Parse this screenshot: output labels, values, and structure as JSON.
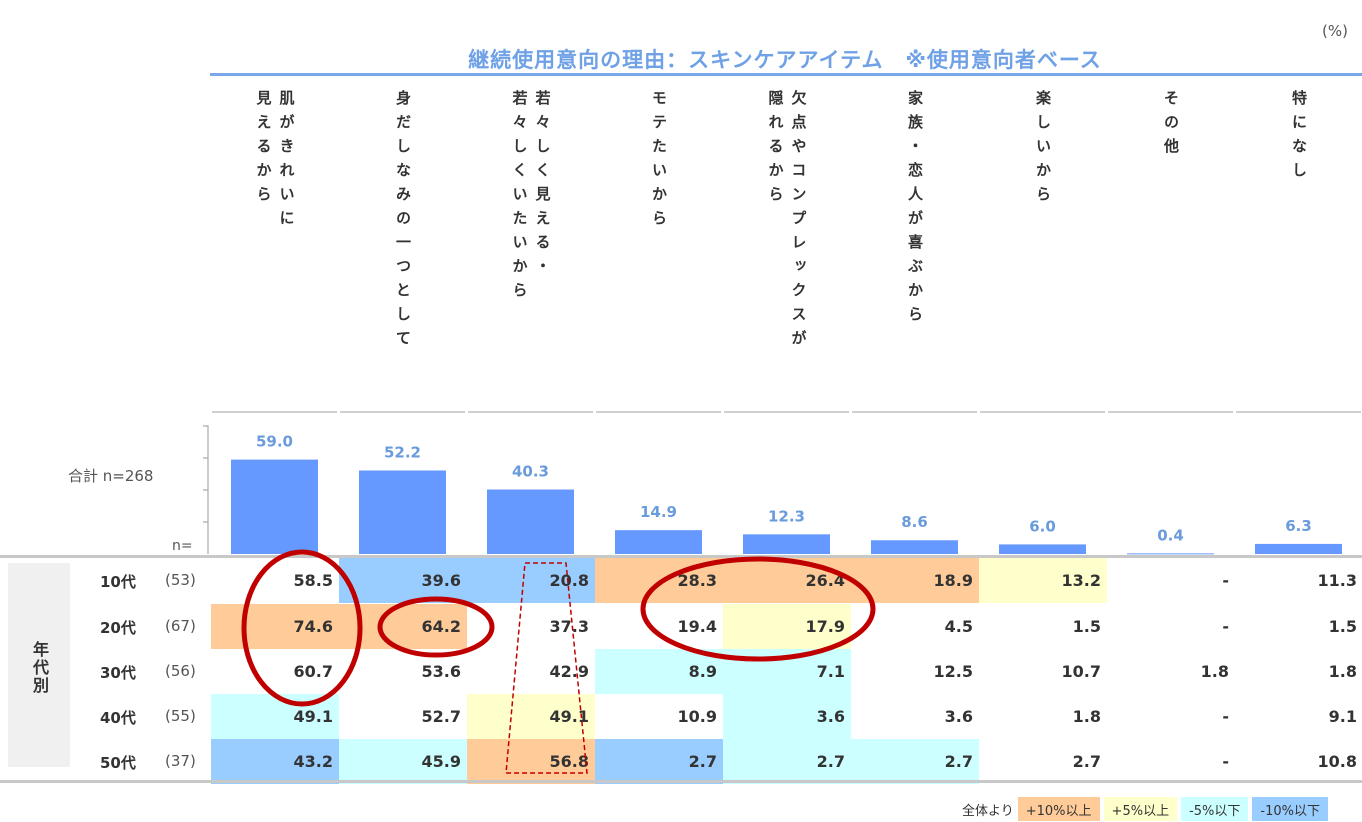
{
  "unit": "(%)",
  "colors": {
    "bar": "#6699ff",
    "value_label": "#6a9bdc",
    "plus10": "#ffcc99",
    "plus5": "#ffffcc",
    "minus5": "#ccffff",
    "minus10": "#99ccff",
    "circle": "#c00000"
  },
  "chart_data": {
    "type": "bar",
    "title": "継続使用意向の理由：スキンケアアイテム　※使用意向者ベース",
    "categories": [
      "肌がきれいに\n見えるから",
      "身だしなみの一つとして",
      "若々しく見える・\n若々しくいたいから",
      "モテたいから",
      "欠点やコンプレックスが\n隠れるから",
      "家族・恋人が喜ぶから",
      "楽しいから",
      "その他",
      "特になし"
    ],
    "value_labels": [
      "59.0",
      "52.2",
      "40.3",
      "14.9",
      "12.3",
      "8.6",
      "6.0",
      "0.4",
      "6.3"
    ],
    "values": [
      59.0,
      52.2,
      40.3,
      14.9,
      12.3,
      8.6,
      6.0,
      0.4,
      6.3
    ],
    "ylim": [
      0,
      100
    ],
    "total_label": "合計 n=268",
    "n_label": "n="
  },
  "table": {
    "group_label": "年代別",
    "rows": [
      {
        "label": "10代",
        "n": "(53)",
        "values": [
          "58.5",
          "39.6",
          "20.8",
          "28.3",
          "26.4",
          "18.9",
          "13.2",
          "-",
          "11.3"
        ],
        "shade": [
          "",
          "minus10",
          "minus10",
          "plus10",
          "plus10",
          "plus10",
          "plus5",
          "",
          ""
        ]
      },
      {
        "label": "20代",
        "n": "(67)",
        "values": [
          "74.6",
          "64.2",
          "37.3",
          "19.4",
          "17.9",
          "4.5",
          "1.5",
          "-",
          "1.5"
        ],
        "shade": [
          "plus10",
          "plus10",
          "",
          "",
          "plus5",
          "",
          "",
          "",
          ""
        ]
      },
      {
        "label": "30代",
        "n": "(56)",
        "values": [
          "60.7",
          "53.6",
          "42.9",
          "8.9",
          "7.1",
          "12.5",
          "10.7",
          "1.8",
          "1.8"
        ],
        "shade": [
          "",
          "",
          "",
          "minus5",
          "minus5",
          "",
          "",
          "",
          ""
        ]
      },
      {
        "label": "40代",
        "n": "(55)",
        "values": [
          "49.1",
          "52.7",
          "49.1",
          "10.9",
          "3.6",
          "3.6",
          "1.8",
          "-",
          "9.1"
        ],
        "shade": [
          "minus5",
          "",
          "plus5",
          "",
          "minus5",
          "",
          "",
          "",
          ""
        ]
      },
      {
        "label": "50代",
        "n": "(37)",
        "values": [
          "43.2",
          "45.9",
          "56.8",
          "2.7",
          "2.7",
          "2.7",
          "2.7",
          "-",
          "10.8"
        ],
        "shade": [
          "minus10",
          "minus5",
          "plus10",
          "minus10",
          "minus5",
          "minus5",
          "",
          "",
          ""
        ]
      }
    ]
  },
  "legend": {
    "prefix": "全体より",
    "items": [
      {
        "label": "+10%以上",
        "shade": "plus10"
      },
      {
        "label": "+5%以上",
        "shade": "plus5"
      },
      {
        "label": "-5%以下",
        "shade": "minus5"
      },
      {
        "label": "-10%以下",
        "shade": "minus10"
      }
    ]
  }
}
